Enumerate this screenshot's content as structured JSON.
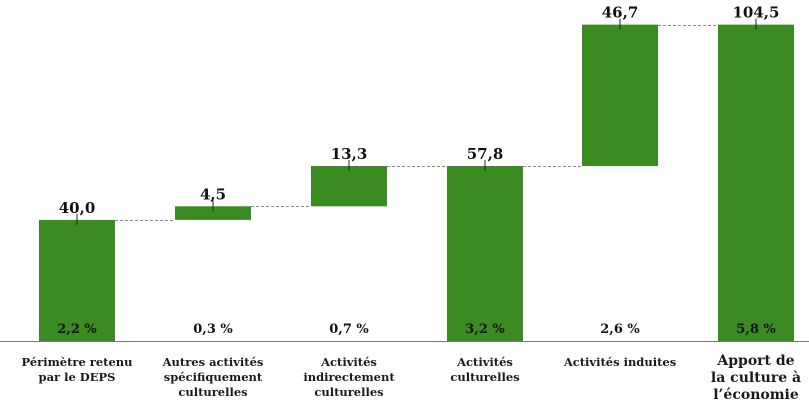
{
  "chart_data": {
    "type": "bar",
    "subtype": "waterfall",
    "categories": [
      "Périmètre retenu\npar le DEPS",
      "Autres activités\nspécifiquement\nculturelles",
      "Activités\nindirectement\nculturelles",
      "Activités\nculturelles",
      "Activités induites",
      "Apport de\nla culture à\nl’économie"
    ],
    "values": [
      40.0,
      4.5,
      13.3,
      57.8,
      46.7,
      104.5
    ],
    "bar_kind": [
      "total",
      "increment",
      "increment",
      "total",
      "increment",
      "total"
    ],
    "value_labels": [
      "40,0",
      "4,5",
      "13,3",
      "57,8",
      "46,7",
      "104,5"
    ],
    "percent_labels": [
      "2,2 %",
      "0,3 %",
      "0,7 %",
      "3,2 %",
      "2,6 %",
      "5,8 %"
    ],
    "ylim": [
      0,
      110
    ],
    "grid": false,
    "legend": "none",
    "title": "",
    "xlabel": "",
    "ylabel": "",
    "bar_color": "#3a8c22",
    "connector_color": "#8a8a8a"
  }
}
